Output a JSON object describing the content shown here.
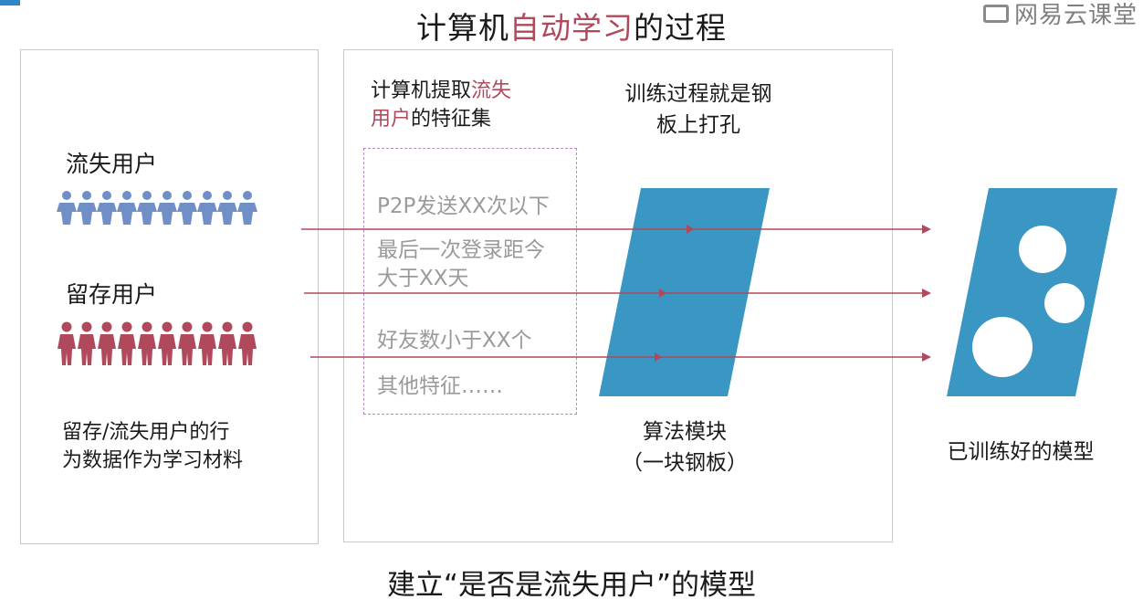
{
  "watermark": "网易云课堂",
  "title": {
    "prefix": "计算机",
    "highlight": "自动学习",
    "suffix": "的过程"
  },
  "left_panel": {
    "churned_label": "流失用户",
    "retained_label": "留存用户",
    "description_line1": "留存/流失用户的行",
    "description_line2": "为数据作为学习材料"
  },
  "middle_panel": {
    "heading_line1_prefix": "计算机提取",
    "heading_line1_highlight": "流失",
    "heading_line2_highlight": "用户",
    "heading_line2_suffix": "的特征集",
    "features": [
      "P2P发送XX次以下",
      "最后一次登录距今",
      "大于XX天",
      "好友数小于XX个",
      "其他特征……"
    ],
    "training_note_line1": "训练过程就是钢",
    "training_note_line2": "板上打孔",
    "algorithm_label_line1": "算法模块",
    "algorithm_label_line2": "（一块钢板）"
  },
  "right": {
    "trained_model_label": "已训练好的模型"
  },
  "bottom_caption": "建立“是否是流失用户”的模型",
  "colors": {
    "accent": "#b0495b",
    "churned_people": "#6f8fc6",
    "retained_people": "#b0495b",
    "plate": "#3a96c3",
    "arrow": "#b0495b",
    "feature_border": "#b68ac4"
  }
}
